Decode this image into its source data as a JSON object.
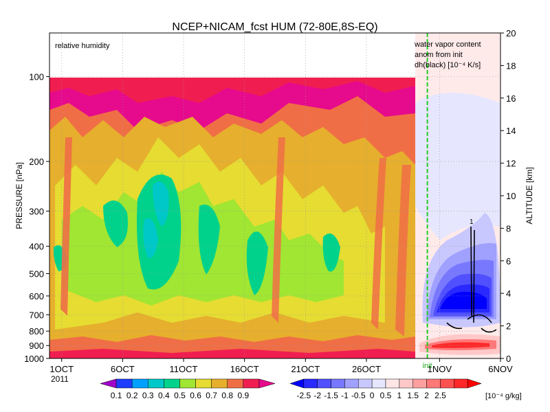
{
  "chart_data": {
    "type": "heatmap",
    "title": "NCEP+NICAM_fcst HUM (72-80E,8S-EQ)",
    "main_panel": {
      "label": "relative humidity",
      "ylabel": "PRESSURE [nPa]",
      "y_ticks": [
        "100",
        "200",
        "300",
        "400",
        "500",
        "600",
        "700",
        "800",
        "900",
        "1000"
      ],
      "y_tick_values": [
        100,
        200,
        300,
        400,
        500,
        600,
        700,
        800,
        900,
        1000
      ],
      "ylim": [
        1000,
        70
      ],
      "y_scale": "log",
      "x_ticks": [
        "1OCT",
        "6OCT",
        "11OCT",
        "16OCT",
        "21OCT",
        "26OCT"
      ],
      "x_tick_days": [
        1,
        6,
        11,
        16,
        21,
        26
      ],
      "x_year": "2011",
      "init_label": "init",
      "init_day": 31
    },
    "right_panel": {
      "label_lines": [
        "water vapor content",
        "anom from init",
        "dh(black) [10⁻⁴ K/s]"
      ],
      "contour_label": "1",
      "x_ticks": [
        "1NOV",
        "6NOV"
      ],
      "x_tick_days": [
        32,
        37
      ],
      "ylabel": "ALTITUDE [km]",
      "alt_ticks": [
        "0",
        "2",
        "4",
        "6",
        "8",
        "10",
        "12",
        "14",
        "16",
        "18",
        "20"
      ],
      "alt_values": [
        0,
        2,
        4,
        6,
        8,
        10,
        12,
        14,
        16,
        18,
        20
      ]
    },
    "legend_rh": {
      "labels": [
        "0.1",
        "0.2",
        "0.3",
        "0.4",
        "0.5",
        "0.6",
        "0.7",
        "0.8",
        "0.9"
      ],
      "colors": [
        "#a000c8",
        "#1e3cff",
        "#00a0ff",
        "#00c8c8",
        "#00d28c",
        "#a0e632",
        "#e6dc32",
        "#e6af2d",
        "#f06e46",
        "#f01e50",
        "#e60a8c"
      ]
    },
    "legend_wv": {
      "labels": [
        "-2.5",
        "-2",
        "-1.5",
        "-1",
        "-0.5",
        "0",
        "0.5",
        "1",
        "1.5",
        "2",
        "2.5"
      ],
      "unit": "[10⁻⁴ g/kg]",
      "colors": [
        "#0000ff",
        "#2828ff",
        "#5050ff",
        "#7878ff",
        "#a0a0ff",
        "#c8c8ff",
        "#e6e6ff",
        "#ffe6e6",
        "#ffc8c8",
        "#ffa0a0",
        "#ff7878",
        "#ff5050",
        "#ff2828",
        "#ff0000"
      ]
    }
  }
}
